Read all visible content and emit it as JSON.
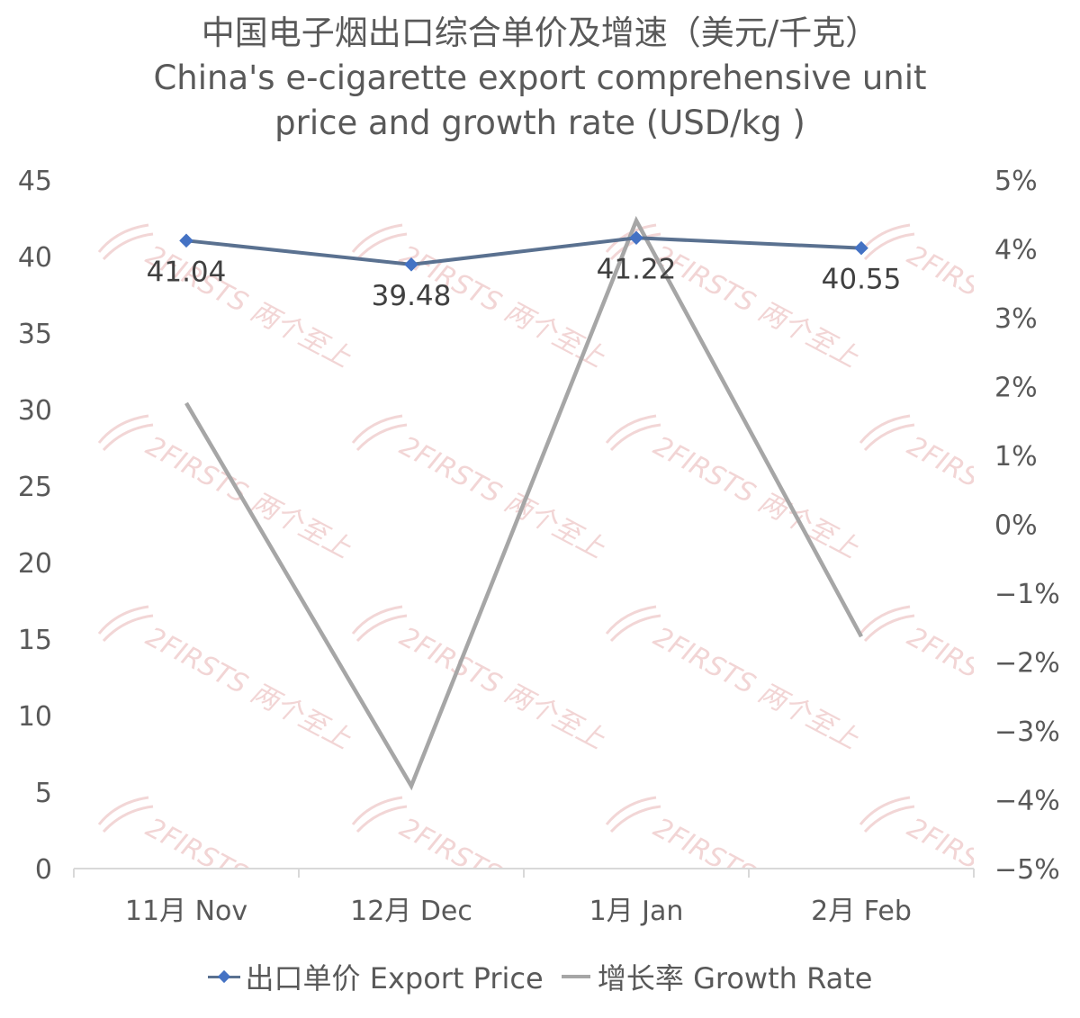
{
  "chart_data": {
    "type": "line",
    "title": "中国电子烟出口综合单价及增速（美元/千克）",
    "subtitle_lines": [
      "China's e-cigarette export comprehensive unit",
      "price and growth rate (USD/kg )"
    ],
    "categories": [
      "11月 Nov",
      "12月 Dec",
      "1月 Jan",
      "2月 Feb"
    ],
    "series": [
      {
        "name": "出口单价 Export Price",
        "axis": "left",
        "values": [
          41.04,
          39.48,
          41.22,
          40.55
        ],
        "data_labels": [
          "41.04",
          "39.48",
          "41.22",
          "40.55"
        ],
        "color": "#5a7190",
        "marker_color": "#4472c4"
      },
      {
        "name": "增长率 Growth Rate",
        "axis": "right",
        "values": [
          1.76,
          -3.8,
          4.41,
          -1.63
        ],
        "color": "#a6a6a6"
      }
    ],
    "y_left": {
      "range": [
        0,
        45
      ],
      "ticks": [
        "0",
        "5",
        "10",
        "15",
        "20",
        "25",
        "30",
        "35",
        "40",
        "45"
      ]
    },
    "y_right": {
      "range": [
        -5,
        5
      ],
      "ticks": [
        "−5%",
        "−4%",
        "−3%",
        "−2%",
        "−1%",
        "0%",
        "1%",
        "2%",
        "3%",
        "4%",
        "5%"
      ]
    },
    "grid": false,
    "legend_position": "bottom",
    "watermark": "2FIRSTS 两个至上"
  }
}
